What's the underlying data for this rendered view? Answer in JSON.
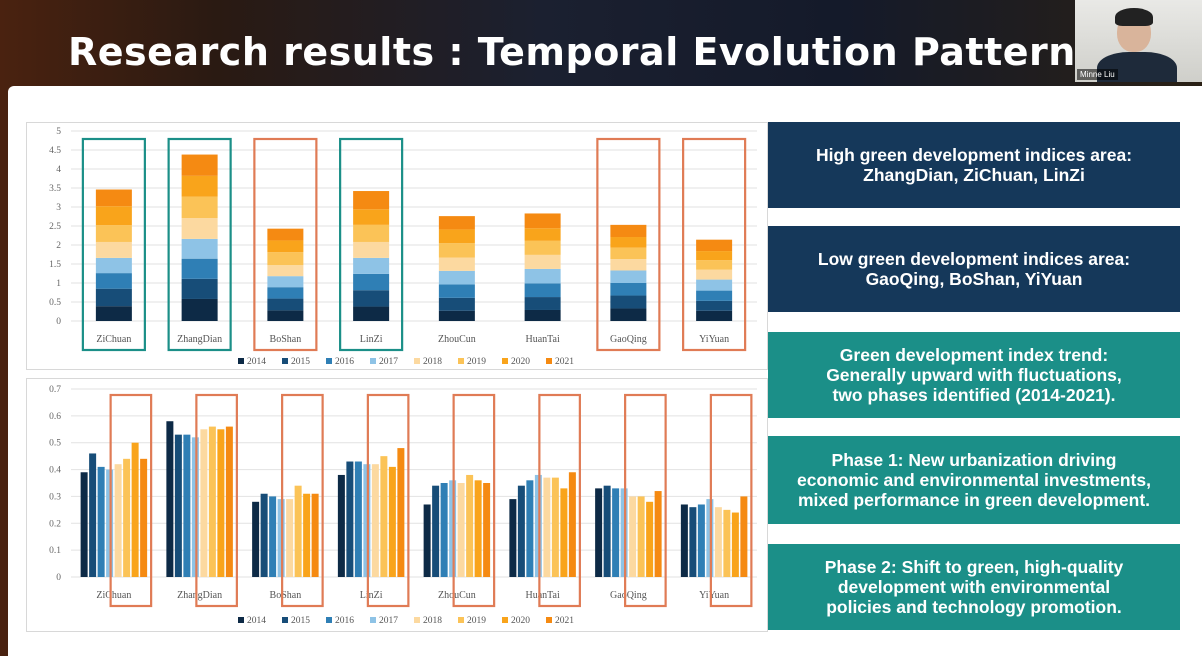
{
  "slide": {
    "title": "Research results : Temporal Evolution Pattern"
  },
  "video": {
    "participant_name": "Minne Liu"
  },
  "panels": {
    "high": "High green development indices area:\nZhangDian, ZiChuan, LinZi",
    "low": "Low green development indices area:\nGaoQing, BoShan, YiYuan",
    "trend": "Green development index trend:\nGenerally upward with fluctuations,\ntwo phases identified (2014-2021).",
    "phase1": "Phase 1: New urbanization driving\neconomic and environmental investments,\nmixed performance in green development.",
    "phase2": "Phase 2: Shift to green, high-quality\ndevelopment with environmental\npolicies and technology promotion."
  },
  "colors": {
    "panel_dark": "#15385a",
    "panel_teal": "#1b8f88",
    "box_teal": "#1b8f88",
    "box_orange": "#e07b55",
    "years": [
      "#0d2a46",
      "#174d78",
      "#2f7fb5",
      "#8ec3e6",
      "#fcd9a0",
      "#fbc357",
      "#f9a41b",
      "#f58a12"
    ]
  },
  "chart_data": [
    {
      "type": "bar",
      "stacked": true,
      "categories": [
        "ZiChuan",
        "ZhangDian",
        "BoShan",
        "LinZi",
        "ZhouCun",
        "HuanTai",
        "GaoQing",
        "YiYuan"
      ],
      "ylim": [
        0,
        5
      ],
      "yticks": [
        "0",
        "0.5",
        "1",
        "1.5",
        "2",
        "2.5",
        "3",
        "3.5",
        "4",
        "4.5",
        "5"
      ],
      "grid": true,
      "legend": "bottom",
      "series": [
        {
          "name": "2014",
          "values": [
            0.39,
            0.58,
            0.28,
            0.38,
            0.27,
            0.29,
            0.33,
            0.27
          ]
        },
        {
          "name": "2015",
          "values": [
            0.46,
            0.53,
            0.31,
            0.43,
            0.34,
            0.34,
            0.34,
            0.26
          ]
        },
        {
          "name": "2016",
          "values": [
            0.41,
            0.53,
            0.3,
            0.43,
            0.35,
            0.36,
            0.33,
            0.27
          ]
        },
        {
          "name": "2017",
          "values": [
            0.4,
            0.52,
            0.29,
            0.42,
            0.36,
            0.38,
            0.33,
            0.29
          ]
        },
        {
          "name": "2018",
          "values": [
            0.42,
            0.55,
            0.29,
            0.42,
            0.35,
            0.37,
            0.3,
            0.26
          ]
        },
        {
          "name": "2019",
          "values": [
            0.44,
            0.56,
            0.34,
            0.45,
            0.38,
            0.37,
            0.3,
            0.25
          ]
        },
        {
          "name": "2020",
          "values": [
            0.5,
            0.55,
            0.31,
            0.41,
            0.36,
            0.33,
            0.28,
            0.24
          ]
        },
        {
          "name": "2021",
          "values": [
            0.44,
            0.56,
            0.31,
            0.48,
            0.35,
            0.39,
            0.32,
            0.3
          ]
        }
      ],
      "highlight_boxes": [
        {
          "category": "ZiChuan",
          "color": "teal"
        },
        {
          "category": "ZhangDian",
          "color": "teal"
        },
        {
          "category": "BoShan",
          "color": "orange"
        },
        {
          "category": "LinZi",
          "color": "teal"
        },
        {
          "category": "GaoQing",
          "color": "orange"
        },
        {
          "category": "YiYuan",
          "color": "orange"
        }
      ]
    },
    {
      "type": "bar",
      "stacked": false,
      "categories": [
        "ZiChuan",
        "ZhangDian",
        "BoShan",
        "LinZi",
        "ZhouCun",
        "HuanTai",
        "GaoQing",
        "YiYuan"
      ],
      "ylim": [
        0,
        0.7
      ],
      "yticks": [
        "0",
        "0.1",
        "0.2",
        "0.3",
        "0.4",
        "0.5",
        "0.6",
        "0.7"
      ],
      "grid": true,
      "legend": "bottom",
      "series": [
        {
          "name": "2014",
          "values": [
            0.39,
            0.58,
            0.28,
            0.38,
            0.27,
            0.29,
            0.33,
            0.27
          ]
        },
        {
          "name": "2015",
          "values": [
            0.46,
            0.53,
            0.31,
            0.43,
            0.34,
            0.34,
            0.34,
            0.26
          ]
        },
        {
          "name": "2016",
          "values": [
            0.41,
            0.53,
            0.3,
            0.43,
            0.35,
            0.36,
            0.33,
            0.27
          ]
        },
        {
          "name": "2017",
          "values": [
            0.4,
            0.52,
            0.29,
            0.42,
            0.36,
            0.38,
            0.33,
            0.29
          ]
        },
        {
          "name": "2018",
          "values": [
            0.42,
            0.55,
            0.29,
            0.42,
            0.35,
            0.37,
            0.3,
            0.26
          ]
        },
        {
          "name": "2019",
          "values": [
            0.44,
            0.56,
            0.34,
            0.45,
            0.38,
            0.37,
            0.3,
            0.25
          ]
        },
        {
          "name": "2020",
          "values": [
            0.5,
            0.55,
            0.31,
            0.41,
            0.36,
            0.33,
            0.28,
            0.24
          ]
        },
        {
          "name": "2021",
          "values": [
            0.44,
            0.56,
            0.31,
            0.48,
            0.35,
            0.39,
            0.32,
            0.3
          ]
        }
      ],
      "highlight_boxes": [
        {
          "category": "ZiChuan",
          "series_from": "2018",
          "color": "orange"
        },
        {
          "category": "ZhangDian",
          "series_from": "2018",
          "color": "orange"
        },
        {
          "category": "BoShan",
          "series_from": "2018",
          "color": "orange"
        },
        {
          "category": "LinZi",
          "series_from": "2018",
          "color": "orange"
        },
        {
          "category": "ZhouCun",
          "series_from": "2018",
          "color": "orange"
        },
        {
          "category": "HuanTai",
          "series_from": "2018",
          "color": "orange"
        },
        {
          "category": "GaoQing",
          "series_from": "2018",
          "color": "orange"
        },
        {
          "category": "YiYuan",
          "series_from": "2018",
          "color": "orange"
        }
      ]
    }
  ]
}
